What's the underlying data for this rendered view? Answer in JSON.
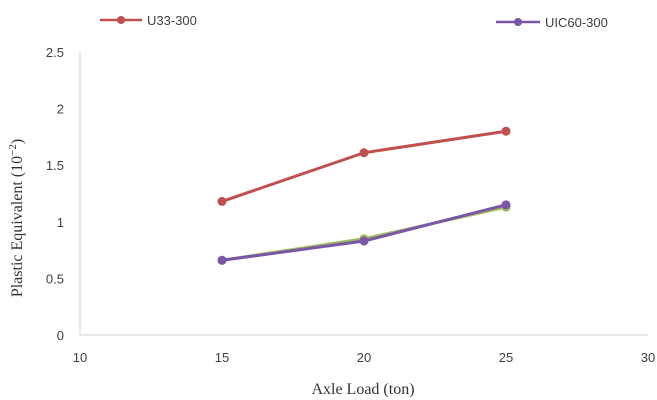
{
  "chart_data": {
    "type": "line",
    "xlabel": "Axle Load (ton)",
    "ylabel": "Plastic Equivalent (10",
    "ylabel_exponent": "−2",
    "ylabel_close": ")",
    "xlim": [
      10,
      30
    ],
    "ylim": [
      0,
      2.5
    ],
    "x_ticks": [
      "10",
      "15",
      "20",
      "25",
      "30"
    ],
    "y_ticks": [
      "0",
      "0.5",
      "1",
      "1.5",
      "2",
      "2.5"
    ],
    "legend_position": "top",
    "grid": false,
    "series": [
      {
        "name": "U33-300",
        "color": "#c0504d",
        "x": [
          15,
          20,
          25
        ],
        "values": [
          1.18,
          1.61,
          1.8
        ]
      },
      {
        "name": "",
        "color": "#9bbb59",
        "x": [
          15,
          20,
          25
        ],
        "values": [
          0.66,
          0.85,
          1.13
        ]
      },
      {
        "name": "UIC60-300",
        "color": "#7a55a8",
        "x": [
          15,
          20,
          25
        ],
        "values": [
          0.66,
          0.83,
          1.15
        ]
      }
    ]
  }
}
